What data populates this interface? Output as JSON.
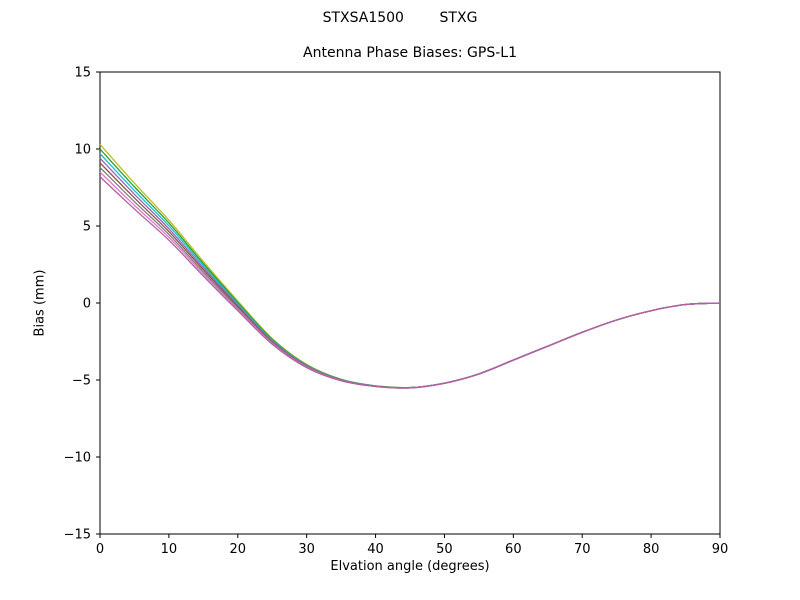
{
  "chart_data": {
    "type": "line",
    "suptitle": "STXSA1500        STXG",
    "title": "Antenna Phase Biases: GPS-L1",
    "xlabel": "Elvation angle (degrees)",
    "ylabel": "Bias (mm)",
    "xlim": [
      0,
      90
    ],
    "ylim": [
      -15,
      15
    ],
    "xticks": [
      0,
      10,
      20,
      30,
      40,
      50,
      60,
      70,
      80,
      90
    ],
    "yticks": [
      -15,
      -10,
      -5,
      0,
      5,
      10,
      15
    ],
    "grid": false,
    "legend": "none",
    "x": [
      0,
      5,
      10,
      15,
      20,
      25,
      30,
      35,
      40,
      45,
      50,
      55,
      60,
      65,
      70,
      75,
      80,
      85,
      90
    ],
    "series": [
      {
        "name": "line-1",
        "color": "#bcbd22",
        "values": [
          10.3,
          7.78,
          5.38,
          2.7,
          0.13,
          -2.3,
          -3.99,
          -4.95,
          -5.38,
          -5.49,
          -5.2,
          -4.6,
          -3.7,
          -2.8,
          -1.9,
          -1.1,
          -0.5,
          -0.1,
          0.0
        ]
      },
      {
        "name": "line-2",
        "color": "#2ca02c",
        "values": [
          10.0,
          7.54,
          5.2,
          2.56,
          0.04,
          -2.36,
          -4.02,
          -4.96,
          -5.38,
          -5.49,
          -5.2,
          -4.6,
          -3.7,
          -2.8,
          -1.9,
          -1.1,
          -0.5,
          -0.1,
          0.0
        ]
      },
      {
        "name": "line-3",
        "color": "#17becf",
        "values": [
          9.7,
          7.3,
          5.01,
          2.43,
          -0.05,
          -2.41,
          -4.05,
          -4.98,
          -5.39,
          -5.5,
          -5.2,
          -4.6,
          -3.7,
          -2.8,
          -1.9,
          -1.1,
          -0.5,
          -0.1,
          0.0
        ]
      },
      {
        "name": "line-4",
        "color": "#9467bd",
        "values": [
          9.4,
          7.06,
          4.82,
          2.29,
          -0.14,
          -2.46,
          -4.08,
          -4.99,
          -5.4,
          -5.5,
          -5.21,
          -4.6,
          -3.7,
          -2.8,
          -1.9,
          -1.1,
          -0.5,
          -0.1,
          0.0
        ]
      },
      {
        "name": "line-5",
        "color": "#8c564b",
        "values": [
          9.1,
          6.82,
          4.64,
          2.16,
          -0.23,
          -2.52,
          -4.11,
          -5.01,
          -5.4,
          -5.5,
          -5.21,
          -4.61,
          -3.71,
          -2.8,
          -1.9,
          -1.1,
          -0.5,
          -0.1,
          0.0
        ]
      },
      {
        "name": "line-6",
        "color": "#7f7f7f",
        "values": [
          8.8,
          6.58,
          4.45,
          2.02,
          -0.32,
          -2.57,
          -4.14,
          -5.02,
          -5.41,
          -5.51,
          -5.21,
          -4.61,
          -3.71,
          -2.81,
          -1.9,
          -1.1,
          -0.5,
          -0.1,
          0.0
        ]
      },
      {
        "name": "line-7",
        "color": "#e377c2",
        "values": [
          8.5,
          6.34,
          4.27,
          1.89,
          -0.41,
          -2.63,
          -4.17,
          -5.04,
          -5.42,
          -5.51,
          -5.22,
          -4.61,
          -3.71,
          -2.81,
          -1.91,
          -1.1,
          -0.5,
          -0.1,
          0.0
        ]
      },
      {
        "name": "line-8",
        "color": "#b05fa3",
        "values": [
          8.2,
          6.1,
          4.08,
          1.75,
          -0.5,
          -2.68,
          -4.2,
          -5.05,
          -5.42,
          -5.52,
          -5.22,
          -4.62,
          -3.72,
          -2.81,
          -1.91,
          -1.11,
          -0.5,
          -0.1,
          0.0
        ]
      }
    ]
  }
}
